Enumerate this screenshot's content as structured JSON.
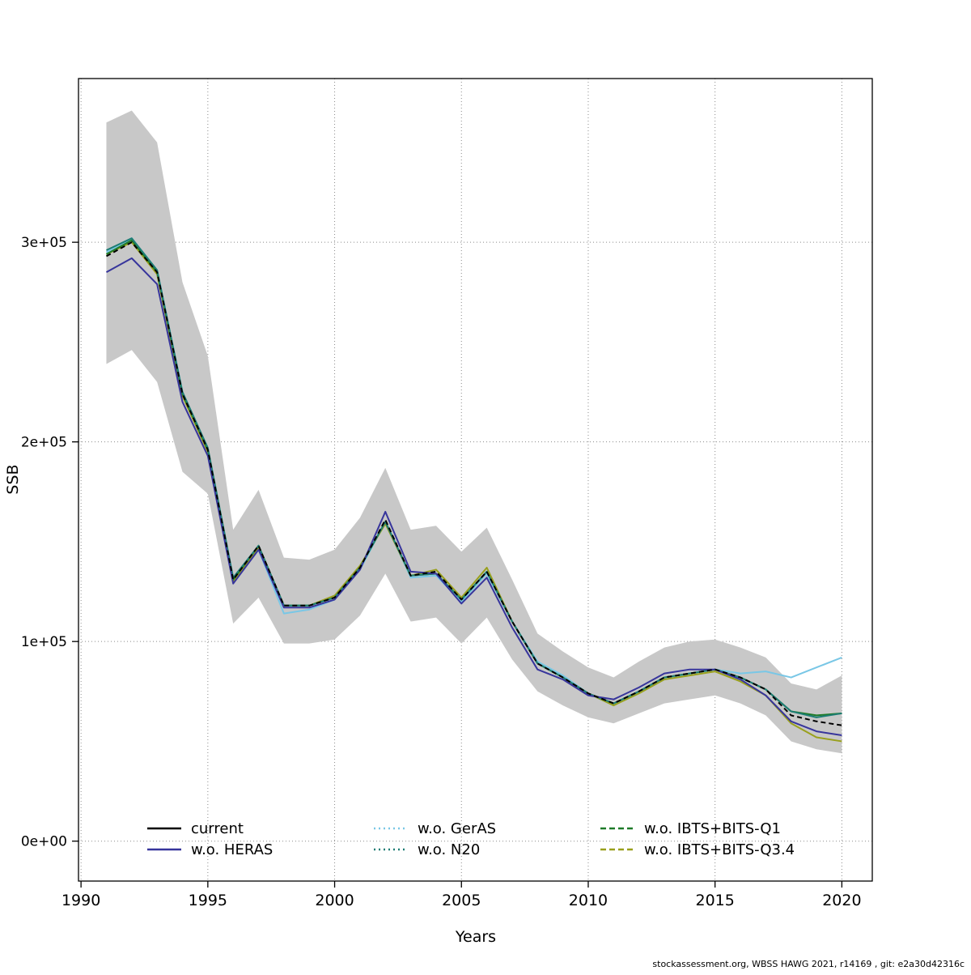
{
  "figure": {
    "xlabel": "Years",
    "ylabel": "SSB",
    "footer": "stockassessment.org, WBSS HAWG 2021, r14169 , git: e2a30d42316c"
  },
  "chart_data": {
    "type": "line",
    "title": "",
    "xlabel": "Years",
    "ylabel": "SSB",
    "xlim": [
      1989.9,
      2021.2
    ],
    "ylim": [
      -20000,
      382000
    ],
    "xticks": [
      1990,
      1995,
      2000,
      2005,
      2010,
      2015,
      2020
    ],
    "yticks": {
      "values": [
        0,
        100000,
        200000,
        300000
      ],
      "labels": [
        "0e+00",
        "1e+05",
        "2e+05",
        "3e+05"
      ]
    },
    "grid": "dotted",
    "x": [
      1991,
      1992,
      1993,
      1994,
      1995,
      1996,
      1997,
      1998,
      1999,
      2000,
      2001,
      2002,
      2003,
      2004,
      2005,
      2006,
      2007,
      2008,
      2009,
      2010,
      2011,
      2012,
      2013,
      2014,
      2015,
      2016,
      2017,
      2018,
      2019,
      2020
    ],
    "band": {
      "name": "confidence-band",
      "color": "#c8c8c8",
      "upper": [
        360000,
        366000,
        350000,
        280000,
        243000,
        156000,
        176000,
        142000,
        141000,
        146000,
        162000,
        187000,
        156000,
        158000,
        145000,
        157000,
        131000,
        104000,
        95000,
        87000,
        82000,
        90000,
        97000,
        100000,
        101000,
        97000,
        92000,
        79000,
        76000,
        83000
      ],
      "lower": [
        239000,
        246000,
        230000,
        185000,
        174000,
        109000,
        122000,
        99000,
        99000,
        101000,
        113000,
        134000,
        110000,
        112000,
        99000,
        112000,
        91000,
        75000,
        68000,
        62000,
        59000,
        64000,
        69000,
        71000,
        73000,
        69000,
        63000,
        50000,
        46000,
        44000
      ]
    },
    "series": [
      {
        "name": "w.o. GerAS",
        "color": "#79c7e6",
        "dash": "",
        "legend_dash": "2,4",
        "values": [
          295000,
          302000,
          286000,
          225000,
          196000,
          131000,
          146000,
          114000,
          116000,
          121000,
          136000,
          160000,
          132000,
          133000,
          120000,
          134000,
          110000,
          90000,
          83000,
          74000,
          68000,
          75000,
          81000,
          84000,
          86000,
          84000,
          85000,
          82000,
          87000,
          92000
        ]
      },
      {
        "name": "w.o. IBTS+BITS-Q3.4",
        "color": "#99a01c",
        "dash": "",
        "legend_dash": "7,4",
        "values": [
          294000,
          300000,
          284000,
          223000,
          195000,
          130000,
          147000,
          118000,
          118000,
          123000,
          138000,
          159000,
          133000,
          136000,
          122000,
          137000,
          110000,
          89000,
          82000,
          74000,
          68000,
          74000,
          81000,
          83000,
          85000,
          80000,
          73000,
          59000,
          52000,
          50000
        ]
      },
      {
        "name": "w.o. IBTS+BITS-Q1",
        "color": "#1e7a28",
        "dash": "",
        "legend_dash": "7,4",
        "values": [
          294000,
          301000,
          285000,
          224000,
          196000,
          131000,
          148000,
          118000,
          118000,
          122000,
          137000,
          160000,
          133000,
          134000,
          121000,
          135000,
          110000,
          89000,
          82000,
          74000,
          69000,
          75000,
          82000,
          84000,
          86000,
          82000,
          76000,
          65000,
          63000,
          64000
        ]
      },
      {
        "name": "w.o. N20",
        "color": "#1d7d74",
        "dash": "",
        "legend_dash": "2,4",
        "values": [
          296000,
          302000,
          286000,
          225000,
          197000,
          132000,
          148000,
          118000,
          118000,
          122000,
          137000,
          160000,
          133000,
          134000,
          121000,
          135000,
          110000,
          89000,
          82000,
          74000,
          69000,
          75000,
          82000,
          84000,
          86000,
          82000,
          76000,
          65000,
          62000,
          64000
        ]
      },
      {
        "name": "w.o. HERAS",
        "color": "#37359c",
        "dash": "",
        "legend_dash": "",
        "values": [
          285000,
          292000,
          279000,
          220000,
          193000,
          129000,
          146000,
          117000,
          117000,
          121000,
          136000,
          165000,
          135000,
          134000,
          119000,
          132000,
          107000,
          86000,
          81000,
          73000,
          71000,
          77000,
          84000,
          86000,
          86000,
          81000,
          73000,
          60000,
          55000,
          53000
        ]
      },
      {
        "name": "current",
        "color": "#000000",
        "dash": "6,4",
        "legend_dash": "",
        "values": [
          293000,
          300000,
          285000,
          224000,
          196000,
          131000,
          148000,
          118000,
          118000,
          122000,
          137000,
          161000,
          133000,
          135000,
          121000,
          135000,
          110000,
          89000,
          82000,
          74000,
          69000,
          75000,
          82000,
          84000,
          86000,
          82000,
          76000,
          63000,
          60000,
          58000
        ]
      }
    ],
    "legend": {
      "position": "bottom-inside",
      "columns": [
        [
          "current",
          "w.o. HERAS"
        ],
        [
          "w.o. GerAS",
          "w.o. N20"
        ],
        [
          "w.o. IBTS+BITS-Q1",
          "w.o. IBTS+BITS-Q3.4"
        ]
      ]
    }
  }
}
